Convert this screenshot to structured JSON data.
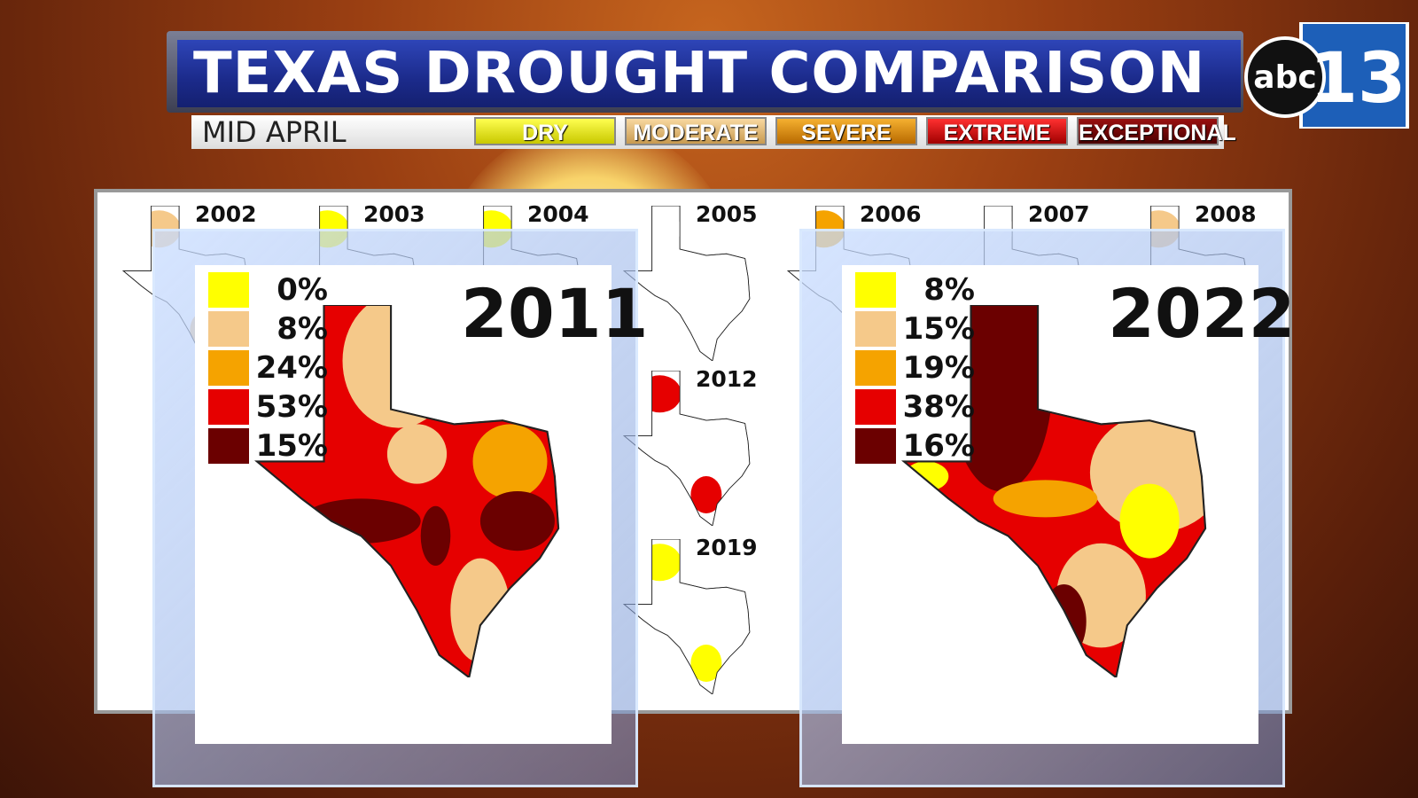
{
  "header": {
    "title": "TEXAS DROUGHT COMPARISON",
    "subtitle": "MID APRIL"
  },
  "legend": [
    "DRY",
    "MODERATE",
    "SEVERE",
    "EXTREME",
    "EXCEPTIONAL"
  ],
  "logo": {
    "network": "abc",
    "channel": "13"
  },
  "thumbnails": [
    "2002",
    "2003",
    "2004",
    "2005",
    "2006",
    "2007",
    "2008",
    "2012",
    "2019"
  ],
  "panels": [
    {
      "year": "2011",
      "stats": [
        "0%",
        "8%",
        "24%",
        "53%",
        "15%"
      ]
    },
    {
      "year": "2022",
      "stats": [
        "8%",
        "15%",
        "19%",
        "38%",
        "16%"
      ]
    }
  ]
}
